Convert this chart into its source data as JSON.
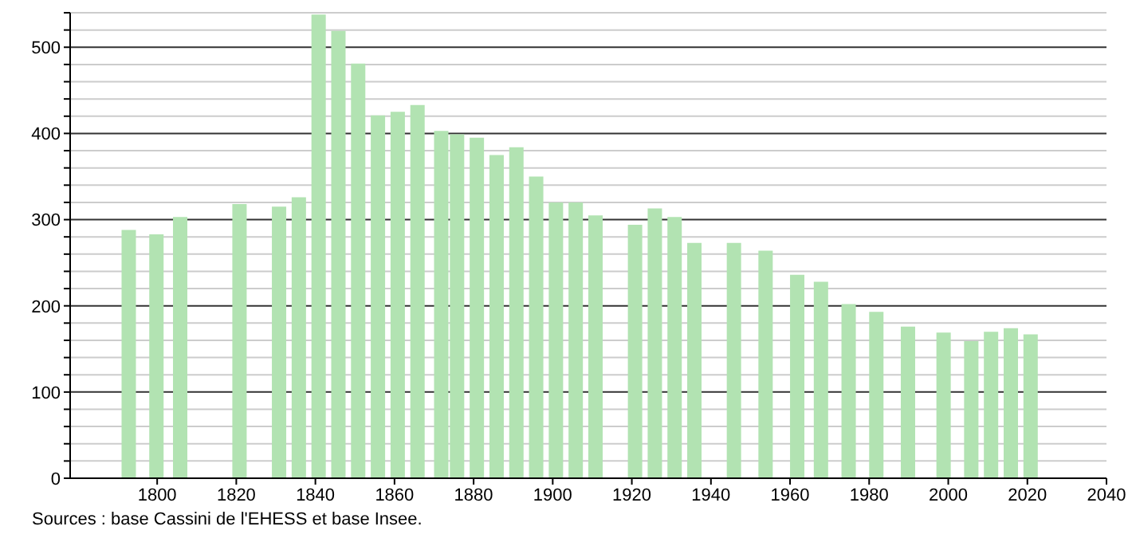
{
  "chart_data": {
    "type": "bar",
    "x": [
      1793,
      1800,
      1806,
      1821,
      1831,
      1836,
      1841,
      1846,
      1851,
      1856,
      1861,
      1866,
      1872,
      1876,
      1881,
      1886,
      1891,
      1896,
      1901,
      1906,
      1911,
      1921,
      1926,
      1931,
      1936,
      1946,
      1954,
      1962,
      1968,
      1975,
      1982,
      1990,
      1999,
      2006,
      2011,
      2016,
      2021
    ],
    "values": [
      288,
      283,
      303,
      318,
      315,
      326,
      538,
      519,
      481,
      421,
      425,
      433,
      403,
      399,
      395,
      375,
      384,
      350,
      320,
      320,
      305,
      294,
      313,
      303,
      273,
      273,
      264,
      236,
      228,
      202,
      193,
      176,
      169,
      159,
      170,
      174,
      167
    ],
    "color": "#b2e3b2",
    "xlim": [
      1778,
      2040
    ],
    "xticks": [
      1800,
      1820,
      1840,
      1860,
      1880,
      1900,
      1920,
      1940,
      1960,
      1980,
      2000,
      2020,
      2040
    ],
    "ylim": [
      0,
      540
    ],
    "yticks": [
      0,
      {
        "value": 20,
        "label": null
      },
      {
        "value": 40,
        "label": null
      },
      {
        "value": 60,
        "label": null
      },
      {
        "value": 80,
        "label": null
      },
      100,
      {
        "value": 120,
        "label": null
      },
      {
        "value": 140,
        "label": null
      },
      {
        "value": 160,
        "label": null
      },
      {
        "value": 180,
        "label": null
      },
      200,
      {
        "value": 220,
        "label": null
      },
      {
        "value": 240,
        "label": null
      },
      {
        "value": 260,
        "label": null
      },
      {
        "value": 280,
        "label": null
      },
      300,
      {
        "value": 320,
        "label": null
      },
      {
        "value": 340,
        "label": null
      },
      {
        "value": 360,
        "label": null
      },
      {
        "value": 380,
        "label": null
      },
      400,
      {
        "value": 420,
        "label": null
      },
      {
        "value": 440,
        "label": null
      },
      {
        "value": 460,
        "label": null
      },
      {
        "value": 480,
        "label": null
      },
      500,
      {
        "value": 520,
        "label": null
      },
      {
        "value": 540,
        "label": null
      }
    ],
    "grid": "y",
    "annotations": [
      "Sources : base Cassini de l'EHESS et base Insee."
    ]
  }
}
